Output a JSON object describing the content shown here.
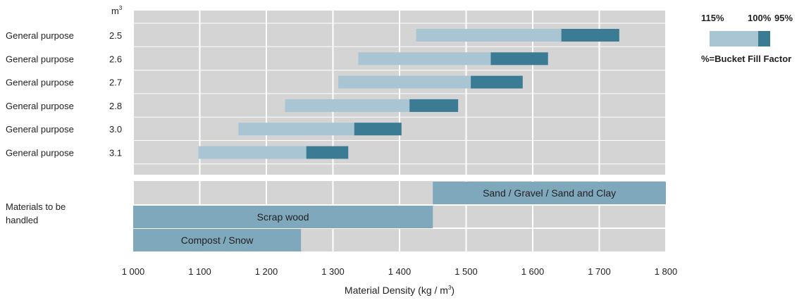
{
  "chart_data": {
    "type": "bar",
    "subtype": "horizontal-range",
    "unit_label_top": "m",
    "unit_label_top_sup": "3",
    "xlabel": "Material Density (kg / m",
    "xlabel_sup": "3",
    "xlabel_end": ")",
    "xlim": [
      1000,
      1800
    ],
    "xticks": [
      1000,
      1100,
      1200,
      1300,
      1400,
      1500,
      1600,
      1700,
      1800
    ],
    "xtick_labels": [
      "1 000",
      "1 100",
      "1 200",
      "1 300",
      "1 400",
      "1 500",
      "1 600",
      "1 700",
      "1 800"
    ],
    "grid": true,
    "buckets": [
      {
        "label": "General purpose",
        "capacity": "2.5",
        "fill_115": 1425,
        "fill_100": 1643,
        "fill_95": 1730
      },
      {
        "label": "General purpose",
        "capacity": "2.6",
        "fill_115": 1338,
        "fill_100": 1537,
        "fill_95": 1623
      },
      {
        "label": "General purpose",
        "capacity": "2.7",
        "fill_115": 1308,
        "fill_100": 1507,
        "fill_95": 1585
      },
      {
        "label": "General purpose",
        "capacity": "2.8",
        "fill_115": 1228,
        "fill_100": 1415,
        "fill_95": 1488
      },
      {
        "label": "General purpose",
        "capacity": "3.0",
        "fill_115": 1158,
        "fill_100": 1332,
        "fill_95": 1403
      },
      {
        "label": "General purpose",
        "capacity": "3.1",
        "fill_115": 1098,
        "fill_100": 1260,
        "fill_95": 1323
      }
    ],
    "materials_label": "Materials to be handled",
    "materials": [
      {
        "name": "Sand / Gravel / Sand and Clay",
        "from": 1450,
        "to": 1800
      },
      {
        "name": "Scrap wood",
        "from": 1000,
        "to": 1450
      },
      {
        "name": "Compost / Snow",
        "from": 1000,
        "to": 1252
      }
    ],
    "legend": {
      "labels": [
        "115%",
        "100%",
        "95%"
      ],
      "caption": "%=Bucket Fill Factor",
      "placement": "top-right"
    }
  },
  "colors": {
    "plot_bg": "#d4d4d5",
    "grid": "#ffffff",
    "light_bar": "#a9c5d4",
    "dark_bar": "#3c7b94",
    "material_bar": "#7fa8bc",
    "text": "#222222"
  }
}
